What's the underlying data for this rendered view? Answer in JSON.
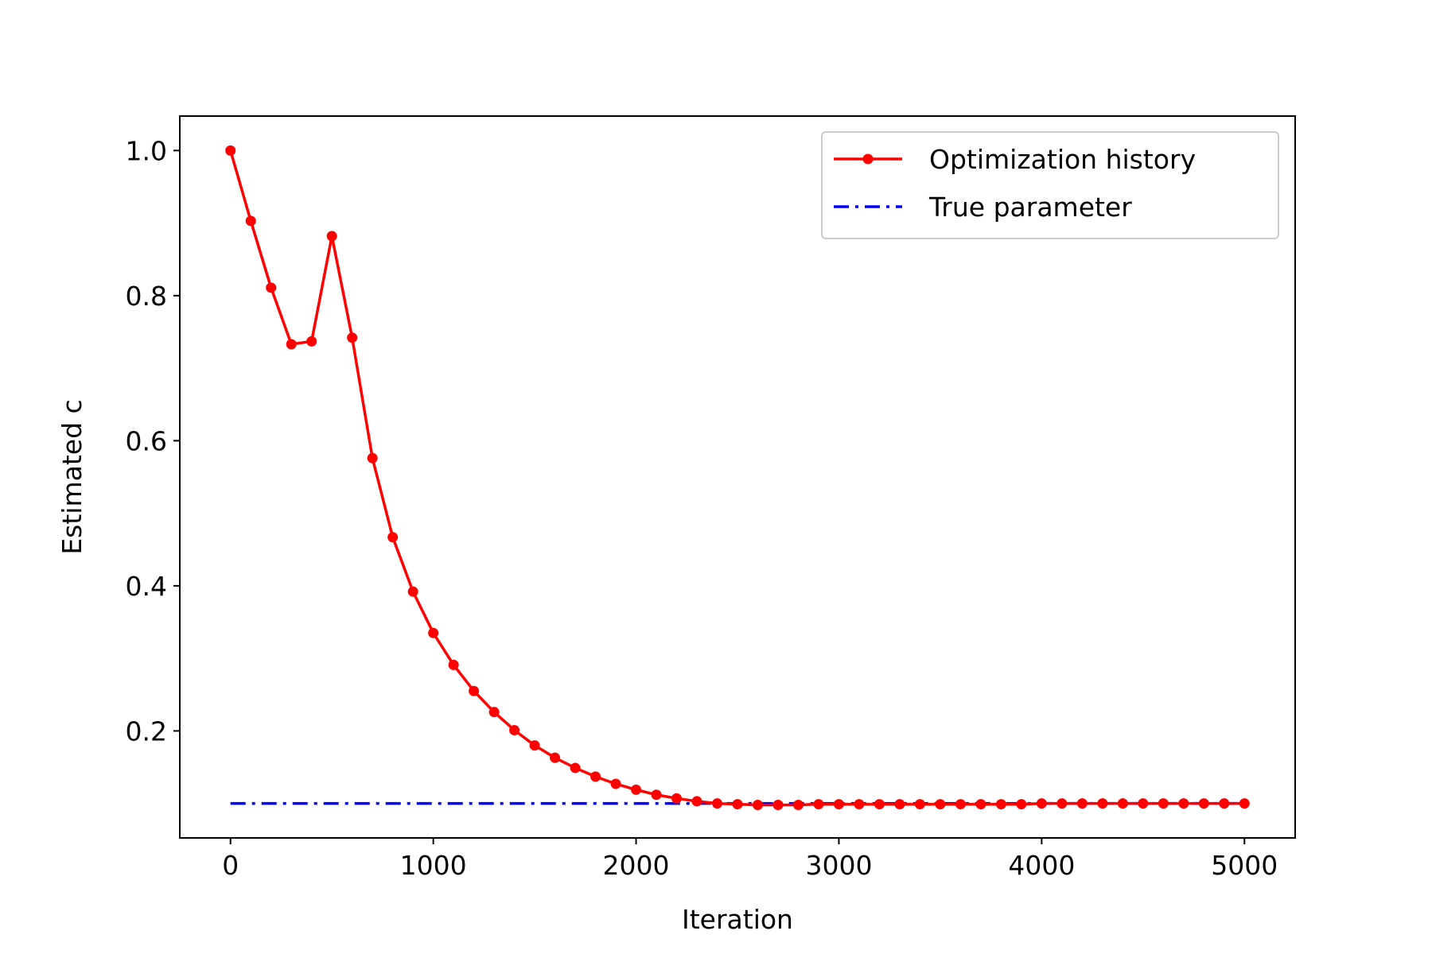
{
  "chart_data": {
    "type": "line",
    "xlabel": "Iteration",
    "ylabel": "Estimated c",
    "xlim": [
      -250,
      5250
    ],
    "ylim": [
      0.0525,
      1.0475
    ],
    "xticks": [
      0,
      1000,
      2000,
      3000,
      4000,
      5000
    ],
    "xtick_labels": [
      "0",
      "1000",
      "2000",
      "3000",
      "4000",
      "5000"
    ],
    "yticks": [
      0.2,
      0.4,
      0.6,
      0.8,
      1.0
    ],
    "ytick_labels": [
      "0.2",
      "0.4",
      "0.6",
      "0.8",
      "1.0"
    ],
    "grid": false,
    "legend_position": "top-right",
    "series": [
      {
        "name": "Optimization history",
        "color": "#ff0000",
        "style": "solid",
        "marker": "circle",
        "x": [
          0,
          100,
          200,
          300,
          400,
          500,
          600,
          700,
          800,
          900,
          1000,
          1100,
          1200,
          1300,
          1400,
          1500,
          1600,
          1700,
          1800,
          1900,
          2000,
          2100,
          2200,
          2300,
          2400,
          2500,
          2600,
          2700,
          2800,
          2900,
          3000,
          3100,
          3200,
          3300,
          3400,
          3500,
          3600,
          3700,
          3800,
          3900,
          4000,
          4100,
          4200,
          4300,
          4400,
          4500,
          4600,
          4700,
          4800,
          4900,
          5000
        ],
        "y": [
          1.0,
          0.903,
          0.811,
          0.733,
          0.737,
          0.882,
          0.742,
          0.576,
          0.467,
          0.392,
          0.335,
          0.291,
          0.255,
          0.226,
          0.201,
          0.18,
          0.163,
          0.149,
          0.137,
          0.127,
          0.119,
          0.112,
          0.107,
          0.103,
          0.1,
          0.099,
          0.098,
          0.098,
          0.098,
          0.099,
          0.099,
          0.099,
          0.099,
          0.099,
          0.099,
          0.099,
          0.099,
          0.099,
          0.099,
          0.099,
          0.1,
          0.1,
          0.1,
          0.1,
          0.1,
          0.1,
          0.1,
          0.1,
          0.1,
          0.1,
          0.1
        ]
      },
      {
        "name": "True parameter",
        "color": "#0000ff",
        "style": "dashdot",
        "marker": "none",
        "x": [
          0,
          5000
        ],
        "y": [
          0.1,
          0.1
        ]
      }
    ]
  }
}
